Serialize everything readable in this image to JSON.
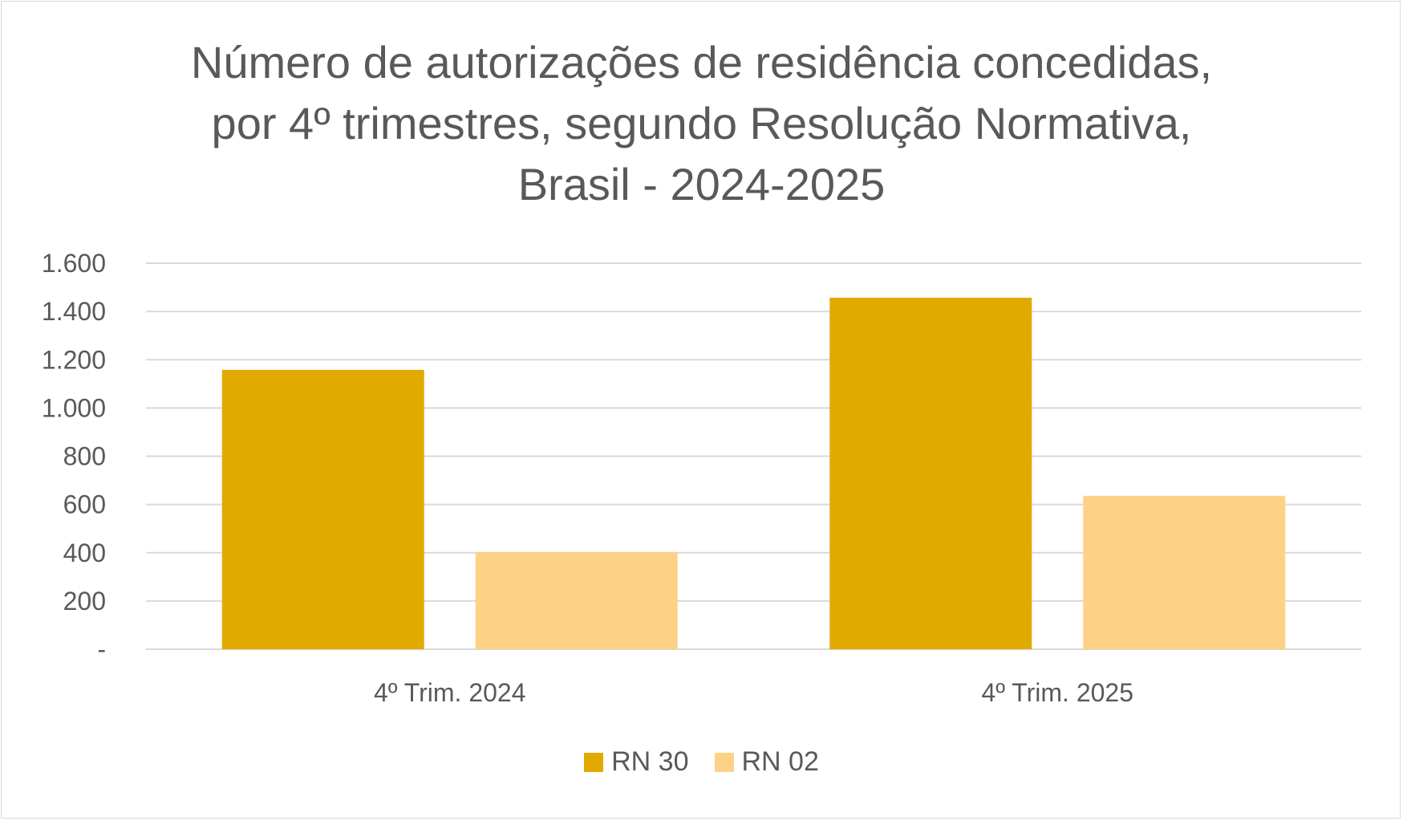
{
  "chart_data": {
    "type": "bar",
    "title_lines": [
      "Número de autorizações de residência concedidas,",
      "por 4º trimestres, segundo Resolução Normativa,",
      "Brasil - 2024-2025"
    ],
    "categories": [
      "4º Trim. 2024",
      "4º Trim. 2025"
    ],
    "series": [
      {
        "name": "RN 30",
        "values": [
          1158,
          1457
        ],
        "color": "#E2AA00"
      },
      {
        "name": "RN 02",
        "values": [
          402,
          636
        ],
        "color": "#FDD286"
      }
    ],
    "ylim": [
      0,
      1600
    ],
    "yticks": [
      0,
      200,
      400,
      600,
      800,
      1000,
      1200,
      1400,
      1600
    ],
    "ytick_labels": [
      "-",
      "200",
      "400",
      "600",
      "800",
      "1.000",
      "1.200",
      "1.400",
      "1.600"
    ],
    "grid": true,
    "legend_position": "bottom",
    "xlabel": "",
    "ylabel": ""
  }
}
